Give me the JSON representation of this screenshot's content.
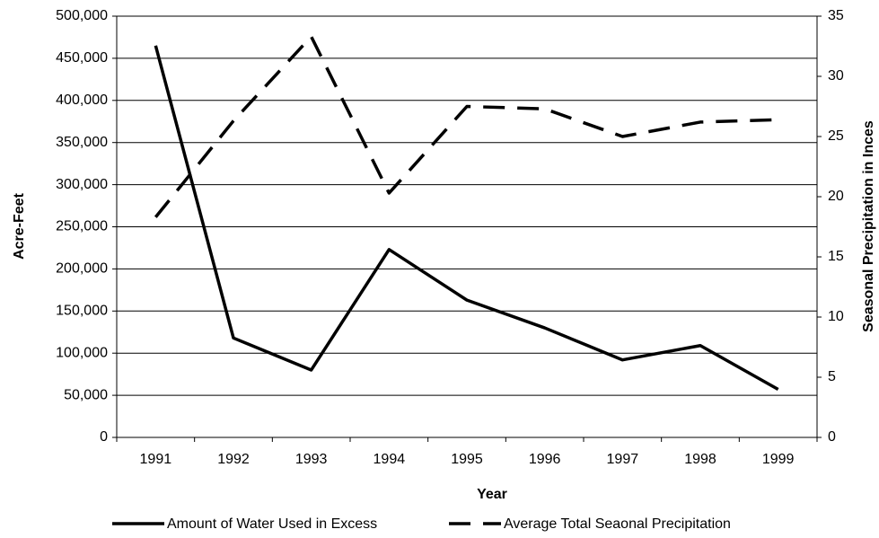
{
  "chart_data": {
    "type": "line",
    "x_label": "Year",
    "y_label": "Acre-Feet",
    "y2_label": "Seasonal Precipitation in Inces",
    "categories": [
      "1991",
      "1992",
      "1993",
      "1994",
      "1995",
      "1996",
      "1997",
      "1998",
      "1999"
    ],
    "series": [
      {
        "name": "Amount of Water Used in Excess",
        "color": "#000000",
        "style": "solid",
        "values": [
          465000,
          118000,
          80000,
          223000,
          163000,
          130000,
          92000,
          109000,
          57000
        ]
      },
      {
        "name": "Average Total Seaonal Precipitation",
        "color": "#000000",
        "style": "dashed",
        "axis": "y2",
        "values": [
          18.3,
          26.3,
          33.3,
          20.3,
          27.5,
          27.3,
          25.0,
          26.2,
          26.4
        ]
      }
    ],
    "ylim": [
      0,
      500000
    ],
    "yticks": [
      0,
      {
        "value": 50000,
        "label": "50,000"
      },
      {
        "value": 100000,
        "label": "100,000"
      },
      {
        "value": 150000,
        "label": "150,000"
      },
      {
        "value": 200000,
        "label": "200,000"
      },
      {
        "value": 250000,
        "label": "250,000"
      },
      {
        "value": 300000,
        "label": "300,000"
      },
      {
        "value": 350000,
        "label": "350,000"
      },
      {
        "value": 400000,
        "label": "400,000"
      },
      {
        "value": 450000,
        "label": "450,000"
      },
      {
        "value": 500000,
        "label": "500,000"
      }
    ],
    "y2lim": [
      0,
      35
    ],
    "y2ticks": [
      0,
      5,
      10,
      15,
      20,
      25,
      30,
      35
    ],
    "grid": true,
    "legend": "bottom"
  }
}
